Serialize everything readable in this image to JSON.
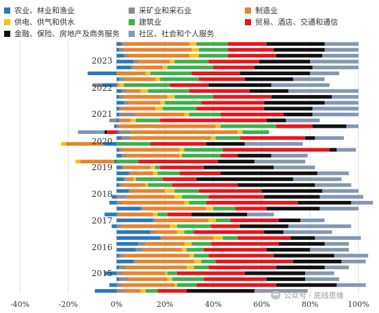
{
  "legend": {
    "items": [
      {
        "label": "农业、林业和渔业",
        "color": "#2878bd"
      },
      {
        "label": "采矿业和采石业",
        "color": "#8c8c8c"
      },
      {
        "label": "制造业",
        "color": "#e8832e"
      },
      {
        "label": "供电、供气和供水",
        "color": "#f6c21a"
      },
      {
        "label": "建筑业",
        "color": "#3cb14a"
      },
      {
        "label": "贸易、酒店、交通和通信",
        "color": "#e8141b"
      },
      {
        "label": "金融、保险、房地产及商务服务",
        "color": "#111111"
      },
      {
        "label": "社区、社会和个人服务",
        "color": "#8397b1"
      }
    ]
  },
  "watermark": {
    "text": "公众号 · 底线思维"
  },
  "chart_data": {
    "type": "bar",
    "orientation": "horizontal",
    "stacked": true,
    "xlim": [
      -40,
      100
    ],
    "x_ticks": [
      "-40%",
      "-20%",
      "0%",
      "20%",
      "40%",
      "60%",
      "80%",
      "100%"
    ],
    "grid": true,
    "year_labels": [
      "2023",
      "2022",
      "2021",
      "2020",
      "2019",
      "2018",
      "2017",
      "2016",
      "2015"
    ],
    "series_names": [
      "农业、林业和渔业",
      "采矿业和采石业",
      "制造业",
      "供电、供气和供水",
      "建筑业",
      "贸易、酒店、交通和通信",
      "金融、保险、房地产及商务服务",
      "社区、社会和个人服务"
    ],
    "colors": [
      "#2878bd",
      "#8c8c8c",
      "#e8832e",
      "#f6c21a",
      "#3cb14a",
      "#e8141b",
      "#111111",
      "#8397b1"
    ],
    "rows": [
      [
        2,
        1,
        27,
        3,
        13,
        16,
        24,
        14
      ],
      [
        1,
        2,
        28,
        3,
        12,
        19,
        21,
        14
      ],
      [
        3,
        2,
        25,
        4,
        12,
        20,
        19,
        15
      ],
      [
        7,
        2,
        13,
        2,
        14,
        21,
        21,
        20
      ],
      [
        6,
        1,
        12,
        2,
        19,
        17,
        24,
        19
      ],
      [
        -12,
        0,
        12,
        2,
        17,
        20,
        29,
        12
      ],
      [
        1,
        2,
        13,
        2,
        16,
        19,
        20,
        13
      ],
      [
        -6,
        -4,
        1,
        2,
        19,
        16,
        26,
        24
      ],
      [
        2,
        2,
        6,
        3,
        17,
        25,
        16,
        29
      ],
      [
        1,
        2,
        18,
        3,
        16,
        24,
        25,
        11
      ],
      [
        3,
        2,
        13,
        2,
        15,
        26,
        25,
        14
      ],
      [
        1,
        1,
        14,
        3,
        14,
        28,
        20,
        19
      ],
      [
        1,
        7,
        20,
        2,
        13,
        26,
        12,
        19
      ],
      [
        1,
        -3,
        5,
        2,
        10,
        44,
        8,
        14
      ],
      [
        -1,
        1,
        40,
        2,
        23,
        15,
        14,
        5
      ],
      [
        1,
        5,
        44,
        2,
        11,
        -4,
        -1,
        -11
      ],
      [
        2,
        4,
        33,
        2,
        10,
        27,
        4,
        12
      ],
      [
        -5,
        -1,
        -15,
        -2,
        14,
        23,
        16,
        24
      ],
      [
        1,
        1,
        24,
        2,
        16,
        44,
        3,
        8
      ],
      [
        2,
        2,
        22,
        1,
        16,
        7,
        14,
        15
      ],
      [
        -1,
        0,
        -14,
        -2,
        9,
        33,
        15,
        21
      ],
      [
        2,
        1,
        11,
        2,
        2,
        18,
        29,
        17
      ],
      [
        5,
        1,
        9,
        2,
        9,
        17,
        40,
        13
      ],
      [
        3,
        1,
        3,
        1,
        11,
        14,
        40,
        20
      ],
      [
        1,
        1,
        10,
        1,
        10,
        27,
        32,
        15
      ],
      [
        5,
        1,
        14,
        4,
        10,
        26,
        25,
        15
      ],
      [
        -2,
        4,
        20,
        3,
        11,
        23,
        23,
        18
      ],
      [
        -3,
        2,
        26,
        2,
        7,
        38,
        22,
        9
      ],
      [
        10,
        1,
        26,
        3,
        9,
        13,
        22,
        16
      ],
      [
        -5,
        1,
        14,
        2,
        4,
        10,
        23,
        11
      ],
      [
        15,
        1,
        22,
        3,
        6,
        20,
        9,
        10
      ],
      [
        -2,
        2,
        20,
        3,
        14,
        12,
        20,
        26
      ],
      [
        14,
        2,
        9,
        3,
        4,
        29,
        8,
        20
      ],
      [
        18,
        1,
        21,
        4,
        6,
        22,
        10,
        19
      ],
      [
        9,
        3,
        16,
        3,
        8,
        28,
        19,
        10
      ],
      [
        8,
        3,
        16,
        2,
        7,
        26,
        18,
        16
      ],
      [
        1,
        2,
        27,
        2,
        6,
        27,
        25,
        14
      ],
      [
        7,
        1,
        24,
        3,
        6,
        32,
        20,
        10
      ],
      [
        1,
        3,
        25,
        3,
        6,
        28,
        20,
        10
      ],
      [
        -5,
        2,
        18,
        1,
        4,
        28,
        25,
        12
      ],
      [
        1,
        4,
        16,
        2,
        13,
        26,
        16,
        14
      ],
      [
        -3,
        2,
        22,
        1,
        8,
        33,
        25,
        12
      ],
      [
        -9,
        3,
        7,
        2,
        5,
        12,
        28,
        22
      ]
    ]
  }
}
